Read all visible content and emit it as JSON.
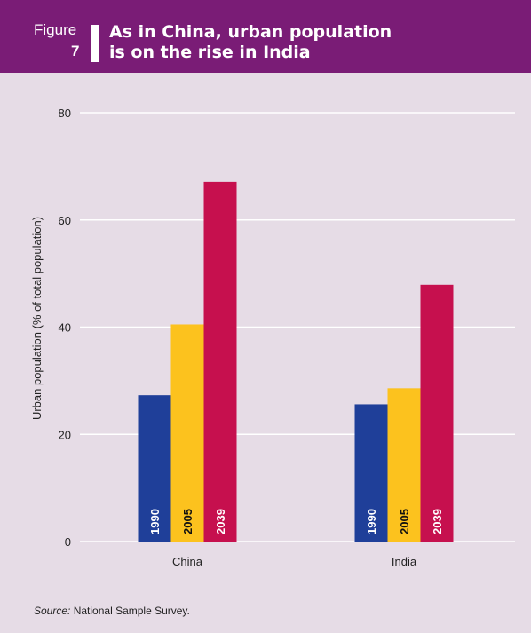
{
  "header": {
    "figure_word": "Figure",
    "figure_number": "7",
    "title_line1": "As in China, urban population",
    "title_line2": "is on the rise in India",
    "background": "#7a1c76"
  },
  "chart_data": {
    "type": "bar",
    "categories": [
      "China",
      "India"
    ],
    "series": [
      {
        "name": "1990",
        "values": [
          27.3,
          25.6
        ],
        "color": "#1f3f99"
      },
      {
        "name": "2005",
        "values": [
          40.5,
          28.6
        ],
        "color": "#fcc21e"
      },
      {
        "name": "2039",
        "values": [
          67.1,
          47.9
        ],
        "color": "#c6104e"
      }
    ],
    "ylabel": "Urban population (% of total population)",
    "xlabel": "",
    "ylim": [
      0,
      80
    ],
    "yticks": [
      0,
      20,
      40,
      60,
      80
    ],
    "grid": true,
    "background": "#e6dce6",
    "gridline_color": "#ffffff",
    "series_labels_inside_bars": true
  },
  "source": {
    "label": "Source:",
    "text": "National Sample Survey."
  }
}
